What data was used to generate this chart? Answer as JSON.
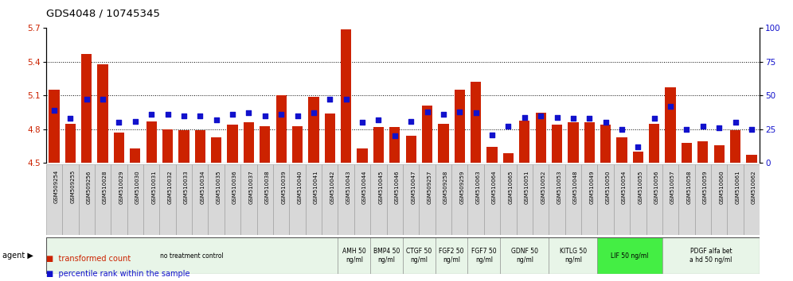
{
  "title": "GDS4048 / 10745345",
  "samples": [
    "GSM509254",
    "GSM509255",
    "GSM509256",
    "GSM510028",
    "GSM510029",
    "GSM510030",
    "GSM510031",
    "GSM510032",
    "GSM510033",
    "GSM510034",
    "GSM510035",
    "GSM510036",
    "GSM510037",
    "GSM510038",
    "GSM510039",
    "GSM510040",
    "GSM510041",
    "GSM510042",
    "GSM510043",
    "GSM510044",
    "GSM510045",
    "GSM510046",
    "GSM510047",
    "GSM509257",
    "GSM509258",
    "GSM509259",
    "GSM510063",
    "GSM510064",
    "GSM510065",
    "GSM510051",
    "GSM510052",
    "GSM510053",
    "GSM510048",
    "GSM510049",
    "GSM510050",
    "GSM510054",
    "GSM510055",
    "GSM510056",
    "GSM510057",
    "GSM510058",
    "GSM510059",
    "GSM510060",
    "GSM510061",
    "GSM510062"
  ],
  "bar_values": [
    5.15,
    4.85,
    5.47,
    5.38,
    4.77,
    4.63,
    4.87,
    4.8,
    4.79,
    4.79,
    4.73,
    4.84,
    4.86,
    4.83,
    5.1,
    4.83,
    5.09,
    4.94,
    5.69,
    4.63,
    4.82,
    4.82,
    4.74,
    5.01,
    4.85,
    5.15,
    5.22,
    4.64,
    4.59,
    4.88,
    4.95,
    4.84,
    4.86,
    4.86,
    4.84,
    4.73,
    4.6,
    4.85,
    5.17,
    4.68,
    4.69,
    4.66,
    4.79,
    4.57
  ],
  "percentile_values": [
    39,
    33,
    47,
    47,
    30,
    31,
    36,
    36,
    35,
    35,
    32,
    36,
    37,
    35,
    36,
    35,
    37,
    47,
    47,
    30,
    32,
    20,
    31,
    38,
    36,
    38,
    37,
    21,
    27,
    34,
    35,
    34,
    33,
    33,
    30,
    25,
    12,
    33,
    42,
    25,
    27,
    26,
    30,
    25
  ],
  "ymin": 4.5,
  "ymax": 5.7,
  "yticks": [
    4.5,
    4.8,
    5.1,
    5.4,
    5.7
  ],
  "right_yticks": [
    0,
    25,
    50,
    75,
    100
  ],
  "bar_color": "#cc2200",
  "dot_color": "#1111cc",
  "agent_groups": [
    {
      "label": "no treatment control",
      "start": 0,
      "end": 18,
      "color": "#e8f5e8",
      "bright": false
    },
    {
      "label": "AMH 50\nng/ml",
      "start": 18,
      "end": 20,
      "color": "#e8f5e8",
      "bright": false
    },
    {
      "label": "BMP4 50\nng/ml",
      "start": 20,
      "end": 22,
      "color": "#e8f5e8",
      "bright": false
    },
    {
      "label": "CTGF 50\nng/ml",
      "start": 22,
      "end": 24,
      "color": "#e8f5e8",
      "bright": false
    },
    {
      "label": "FGF2 50\nng/ml",
      "start": 24,
      "end": 26,
      "color": "#e8f5e8",
      "bright": false
    },
    {
      "label": "FGF7 50\nng/ml",
      "start": 26,
      "end": 28,
      "color": "#e8f5e8",
      "bright": false
    },
    {
      "label": "GDNF 50\nng/ml",
      "start": 28,
      "end": 31,
      "color": "#e8f5e8",
      "bright": false
    },
    {
      "label": "KITLG 50\nng/ml",
      "start": 31,
      "end": 34,
      "color": "#e8f5e8",
      "bright": false
    },
    {
      "label": "LIF 50 ng/ml",
      "start": 34,
      "end": 38,
      "color": "#44ee44",
      "bright": true
    },
    {
      "label": "PDGF alfa bet\na hd 50 ng/ml",
      "start": 38,
      "end": 44,
      "color": "#e8f5e8",
      "bright": false
    }
  ]
}
